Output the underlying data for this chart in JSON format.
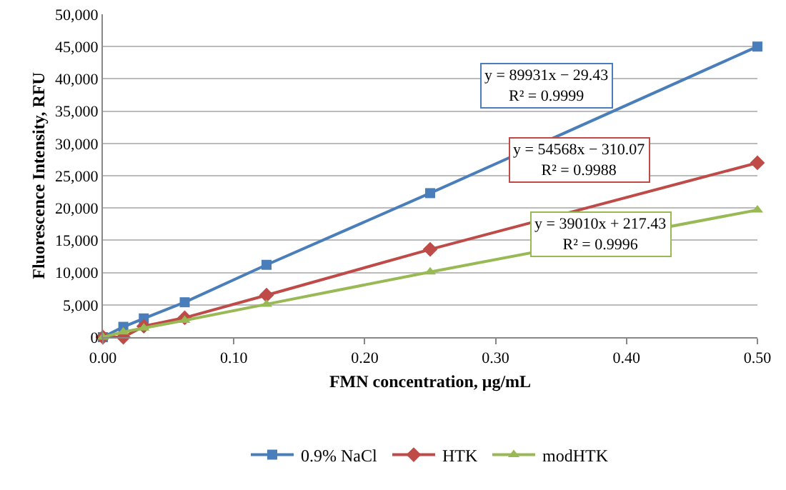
{
  "chart_data": {
    "type": "line",
    "xlabel": "FMN concentration, μg/mL",
    "ylabel": "Fluorescence Intensity, RFU",
    "x": [
      0,
      0.015625,
      0.03125,
      0.0625,
      0.125,
      0.25,
      0.5
    ],
    "series": [
      {
        "name": "0.9% NaCl",
        "color": "#4a7ebb",
        "marker": "square",
        "values": [
          0,
          1600,
          2900,
          5400,
          11200,
          22300,
          45000
        ]
      },
      {
        "name": "HTK",
        "color": "#be4b48",
        "marker": "diamond",
        "values": [
          0,
          0,
          1700,
          3000,
          6500,
          13600,
          27000
        ]
      },
      {
        "name": "modHTK",
        "color": "#98b954",
        "marker": "triangle",
        "values": [
          0,
          800,
          1400,
          2600,
          5100,
          10100,
          19700
        ]
      }
    ],
    "annotations": [
      "y = 89931x − 29.43\nR² = 0.9999",
      "y = 54568x − 310.07\nR² = 0.9988",
      "y = 39010x + 217.43\nR² = 0.9996"
    ],
    "xlim": [
      0,
      0.5
    ],
    "xticks": [
      {
        "value": 0,
        "label": "0.00"
      },
      {
        "value": 0.1,
        "label": "0.10"
      },
      {
        "value": 0.2,
        "label": "0.20"
      },
      {
        "value": 0.3,
        "label": "0.30"
      },
      {
        "value": 0.4,
        "label": "0.40"
      },
      {
        "value": 0.5,
        "label": "0.50"
      }
    ],
    "ylim": [
      0,
      50000
    ],
    "yticks": [
      0,
      {
        "value": 5000,
        "label": "5,000"
      },
      {
        "value": 10000,
        "label": "10,000"
      },
      {
        "value": 15000,
        "label": "15,000"
      },
      {
        "value": 20000,
        "label": "20,000"
      },
      {
        "value": 25000,
        "label": "25,000"
      },
      {
        "value": 30000,
        "label": "30,000"
      },
      {
        "value": 35000,
        "label": "35,000"
      },
      {
        "value": 40000,
        "label": "40,000"
      },
      {
        "value": 45000,
        "label": "45,000"
      },
      {
        "value": 50000,
        "label": "50,000"
      }
    ],
    "grid": "y",
    "legend": "bottom",
    "line_style": "solid"
  }
}
